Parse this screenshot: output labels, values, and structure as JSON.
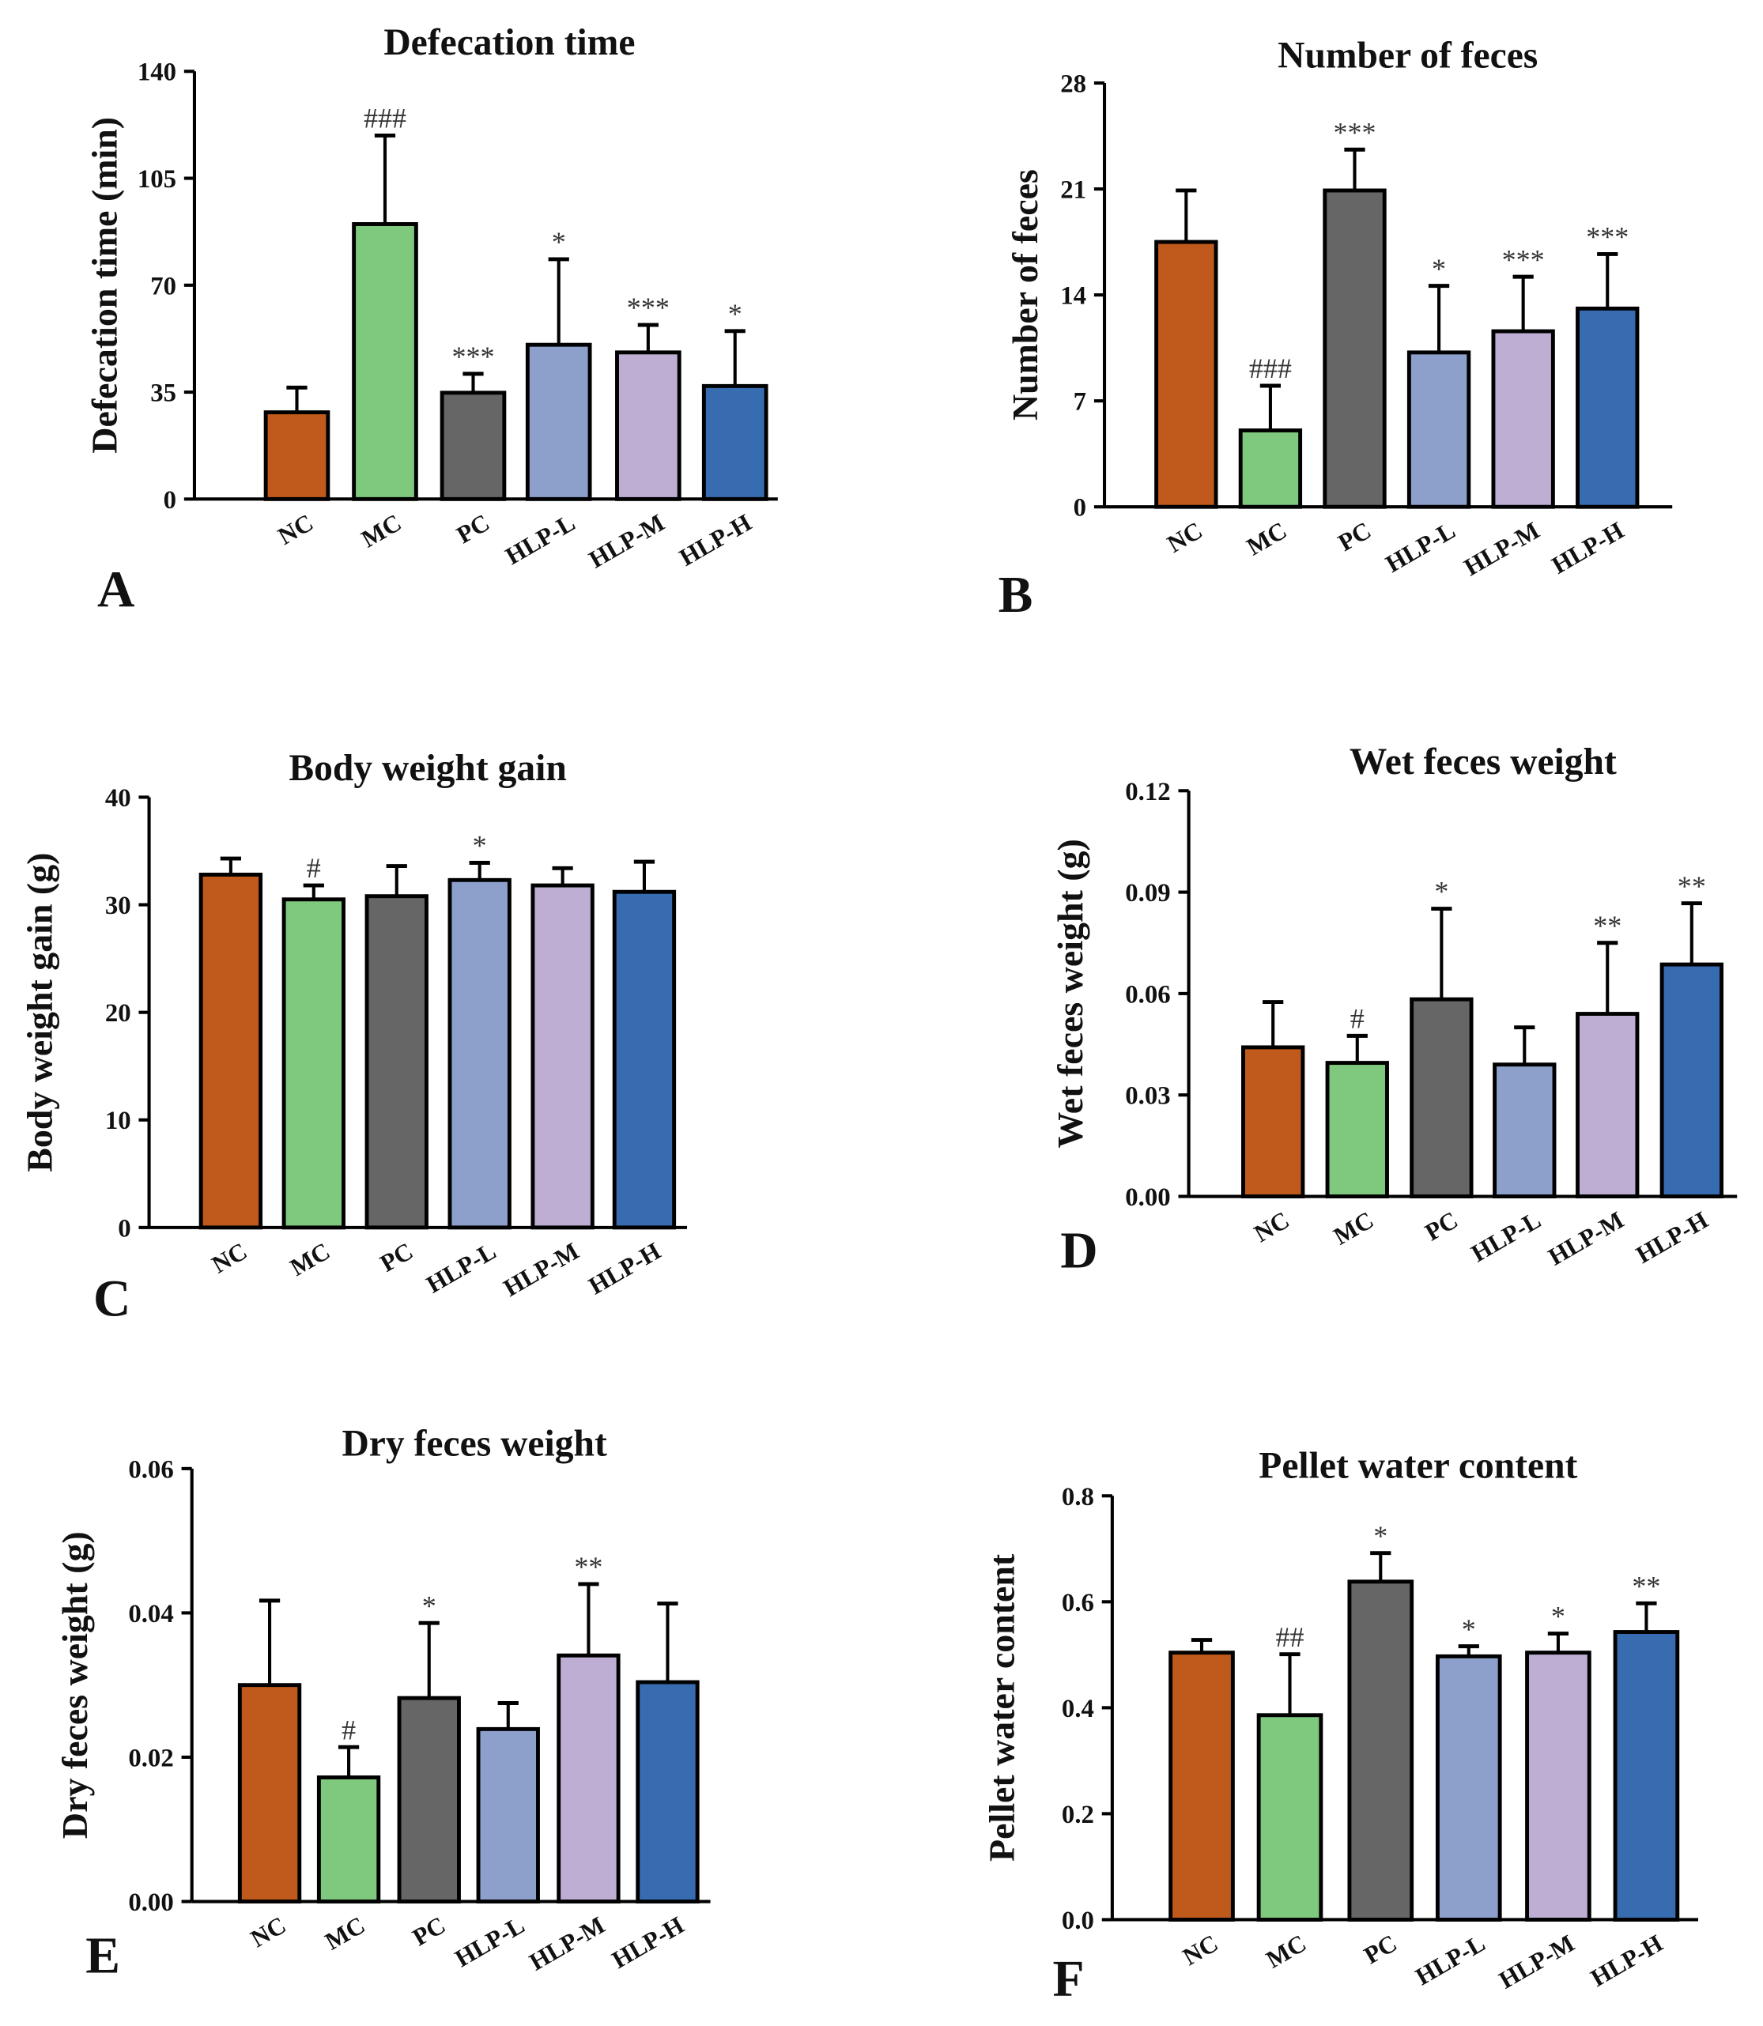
{
  "colors": {
    "NC": "#C05A1C",
    "MC": "#7FC97F",
    "PC": "#666666",
    "HLP-L": "#8DA0CB",
    "HLP-M": "#BEAED4",
    "HLP-H": "#386CB0"
  },
  "chart_data": [
    {
      "panel": "A",
      "type": "bar",
      "title": "Defecation time",
      "ylabel": "Defecation time (min)",
      "xlabel": "",
      "categories": [
        "NC",
        "MC",
        "PC",
        "HLP-L",
        "HLP-M",
        "HLP-H"
      ],
      "values": [
        28.4,
        90,
        34.8,
        50.5,
        48,
        37
      ],
      "error_upper": [
        36.5,
        119,
        41,
        78.5,
        57,
        55
      ],
      "annotations": [
        "",
        "###",
        "***",
        "*",
        "***",
        "*"
      ],
      "ylim": [
        0,
        140
      ],
      "yticks": [
        "0",
        "35",
        "70",
        "105",
        "140"
      ],
      "grid": false
    },
    {
      "panel": "B",
      "type": "bar",
      "title": "Number of feces",
      "ylabel": "Number of feces",
      "xlabel": "",
      "categories": [
        "NC",
        "MC",
        "PC",
        "HLP-L",
        "HLP-M",
        "HLP-H"
      ],
      "values": [
        17.5,
        5.05,
        20.9,
        10.2,
        11.6,
        13.1
      ],
      "error_upper": [
        20.9,
        8,
        23.6,
        14.6,
        15.2,
        16.7
      ],
      "annotations": [
        "",
        "###",
        "***",
        "*",
        "***",
        "***"
      ],
      "ylim": [
        0,
        28
      ],
      "yticks": [
        "0",
        "7",
        "14",
        "21",
        "28"
      ],
      "grid": false
    },
    {
      "panel": "C",
      "type": "bar",
      "title": "Body weight gain",
      "ylabel": "Body weight gain (g)",
      "xlabel": "",
      "categories": [
        "NC",
        "MC",
        "PC",
        "HLP-L",
        "HLP-M",
        "HLP-H"
      ],
      "values": [
        32.8,
        30.5,
        30.8,
        32.3,
        31.8,
        31.2
      ],
      "error_upper": [
        34.3,
        31.8,
        33.6,
        33.9,
        33.4,
        34
      ],
      "annotations": [
        "",
        "#",
        "",
        "*",
        "",
        ""
      ],
      "ylim": [
        0,
        40
      ],
      "yticks": [
        "0",
        "10",
        "20",
        "30",
        "40"
      ],
      "grid": false
    },
    {
      "panel": "D",
      "type": "bar",
      "title": "Wet feces weight",
      "ylabel": "Wet feces weight (g)",
      "xlabel": "",
      "categories": [
        "NC",
        "MC",
        "PC",
        "HLP-L",
        "HLP-M",
        "HLP-H"
      ],
      "values": [
        0.0441,
        0.0395,
        0.0583,
        0.039,
        0.054,
        0.0686
      ],
      "error_upper": [
        0.0575,
        0.0475,
        0.0851,
        0.05,
        0.075,
        0.0867
      ],
      "annotations": [
        "",
        "#",
        "*",
        "",
        "**",
        "**"
      ],
      "ylim": [
        0,
        0.12
      ],
      "yticks": [
        "0.00",
        "0.03",
        "0.06",
        "0.09",
        "0.12"
      ],
      "grid": false
    },
    {
      "panel": "E",
      "type": "bar",
      "title": "Dry feces weight",
      "ylabel": "Dry feces weight (g)",
      "xlabel": "",
      "categories": [
        "NC",
        "MC",
        "PC",
        "HLP-L",
        "HLP-M",
        "HLP-H"
      ],
      "values": [
        0.03,
        0.0172,
        0.0282,
        0.0239,
        0.0341,
        0.0304
      ],
      "error_upper": [
        0.0417,
        0.0214,
        0.0386,
        0.0275,
        0.044,
        0.0413
      ],
      "annotations": [
        "",
        "#",
        "*",
        "",
        "**",
        ""
      ],
      "ylim": [
        0,
        0.06
      ],
      "yticks": [
        "0.00",
        "0.02",
        "0.04",
        "0.06"
      ],
      "grid": false
    },
    {
      "panel": "F",
      "type": "bar",
      "title": "Pellet water content",
      "ylabel": "Pellet water content",
      "xlabel": "",
      "categories": [
        "NC",
        "MC",
        "PC",
        "HLP-L",
        "HLP-M",
        "HLP-H"
      ],
      "values": [
        0.504,
        0.386,
        0.638,
        0.497,
        0.504,
        0.543
      ],
      "error_upper": [
        0.528,
        0.501,
        0.692,
        0.516,
        0.54,
        0.597
      ],
      "annotations": [
        "",
        "##",
        "*",
        "*",
        "*",
        "**"
      ],
      "ylim": [
        0,
        0.8
      ],
      "yticks": [
        "0.0",
        "0.2",
        "0.4",
        "0.6",
        "0.8"
      ],
      "grid": false
    }
  ]
}
